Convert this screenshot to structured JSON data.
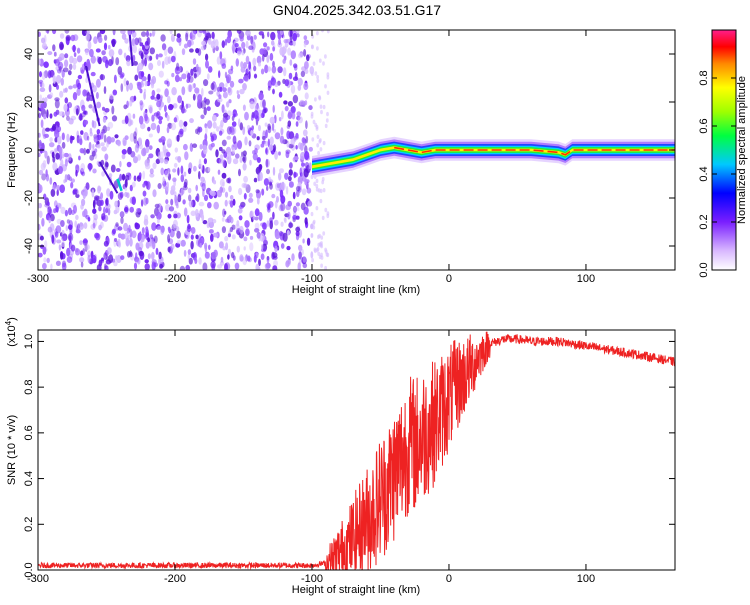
{
  "title": "GN04.2025.342.03.51.G17",
  "chart_data": [
    {
      "type": "heatmap",
      "xlabel": "Height of straight line (km)",
      "ylabel": "Frequency (Hz)",
      "xlim": [
        -300,
        165
      ],
      "ylim": [
        -50,
        50
      ],
      "x_ticks": [
        "-300",
        "-200",
        "-100",
        "0",
        "100"
      ],
      "x_tick_values": [
        -300,
        -200,
        -100,
        0,
        100
      ],
      "y_ticks": [
        "-40",
        "-20",
        "0",
        "20",
        "40"
      ],
      "y_tick_values": [
        -40,
        -20,
        0,
        20,
        40
      ],
      "colorbar": {
        "label": "Normalized spectral amplitude",
        "range": [
          0,
          1
        ],
        "ticks": [
          "0.0",
          "0.2",
          "0.4",
          "0.6",
          "0.8"
        ],
        "tick_values": [
          0.0,
          0.2,
          0.4,
          0.6,
          0.8
        ]
      },
      "noise_region_x": [
        -300,
        -100
      ],
      "signal_track": {
        "x": [
          -100,
          -90,
          -80,
          -70,
          -60,
          -50,
          -40,
          -30,
          -20,
          -10,
          0,
          20,
          40,
          60,
          80,
          85,
          90,
          100,
          120,
          140,
          165
        ],
        "freq": [
          -7,
          -6,
          -5,
          -4,
          -2,
          0,
          1,
          0,
          -1,
          0,
          0,
          0,
          0,
          0,
          -1,
          -2,
          0,
          0,
          0,
          0,
          0
        ]
      }
    },
    {
      "type": "line",
      "ylabel": "SNR (10 * v/v)",
      "xlabel": "Height of straight line (km)",
      "scale_label": "(x10",
      "scale_exp": "4",
      "xlim": [
        -300,
        165
      ],
      "ylim": [
        0,
        1.05
      ],
      "x_ticks": [
        "-300",
        "-200",
        "-100",
        "0",
        "100"
      ],
      "x_tick_values": [
        -300,
        -200,
        -100,
        0,
        100
      ],
      "y_ticks": [
        "0.0",
        "0.2",
        "0.4",
        "0.6",
        "0.8",
        "1.0"
      ],
      "y_tick_values": [
        0.0,
        0.2,
        0.4,
        0.6,
        0.8,
        1.0
      ],
      "series": [
        {
          "name": "SNR",
          "color": "#ee2222",
          "x": [
            -300,
            -250,
            -200,
            -150,
            -100,
            -90,
            -85,
            -80,
            -75,
            -70,
            -65,
            -60,
            -55,
            -50,
            -45,
            -40,
            -35,
            -30,
            -25,
            -20,
            -15,
            -10,
            -5,
            0,
            5,
            10,
            15,
            20,
            25,
            30,
            35,
            40,
            50,
            60,
            80,
            100,
            120,
            140,
            165
          ],
          "y": [
            0.02,
            0.02,
            0.02,
            0.02,
            0.02,
            0.03,
            0.05,
            0.08,
            0.1,
            0.14,
            0.18,
            0.22,
            0.26,
            0.32,
            0.36,
            0.42,
            0.48,
            0.55,
            0.55,
            0.58,
            0.62,
            0.65,
            0.7,
            0.75,
            0.8,
            0.84,
            0.88,
            0.92,
            0.96,
            0.99,
            1.0,
            1.01,
            1.01,
            1.0,
            1.0,
            0.98,
            0.96,
            0.94,
            0.91
          ]
        }
      ]
    }
  ],
  "colors": {
    "line": "#ee2222",
    "axis": "#000000",
    "background": "#ffffff"
  }
}
